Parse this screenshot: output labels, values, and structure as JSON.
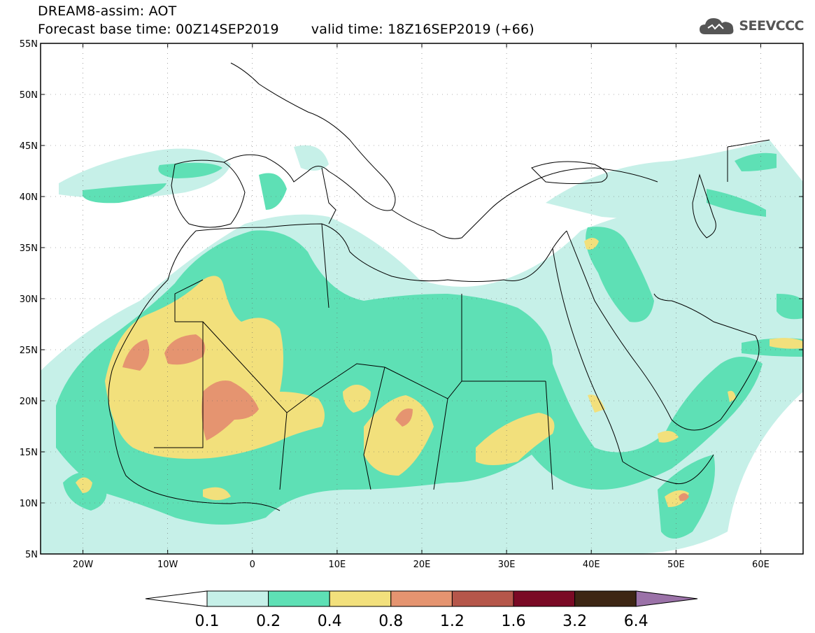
{
  "header": {
    "title": "DREAM8-assim: AOT",
    "base_time": "Forecast base time: 00Z14SEP2019",
    "valid_time": "valid time: 18Z16SEP2019 (+66)"
  },
  "logo": {
    "text": "SEEVCCC",
    "icon": "cloud-icon"
  },
  "map": {
    "lon_range": [
      -25,
      65
    ],
    "lat_range": [
      5,
      55
    ],
    "lat_ticks": [
      "5N",
      "10N",
      "15N",
      "20N",
      "25N",
      "30N",
      "35N",
      "40N",
      "45N",
      "50N",
      "55N"
    ],
    "lon_ticks": [
      "20W",
      "10W",
      "0",
      "10E",
      "20E",
      "30E",
      "40E",
      "50E",
      "60E"
    ]
  },
  "colorbar": {
    "labels": [
      "0.1",
      "0.2",
      "0.4",
      "0.8",
      "1.2",
      "1.6",
      "3.2",
      "6.4"
    ],
    "colors": [
      "#ffffff",
      "#c6f0e8",
      "#5ee0b5",
      "#f2e07c",
      "#e59470",
      "#b5564a",
      "#7a0a25",
      "#3d2614",
      "#9b72a8"
    ]
  },
  "colors": {
    "level1": "#c6f0e8",
    "level2": "#5ee0b5",
    "level3": "#f2e07c",
    "level4": "#e59470"
  }
}
